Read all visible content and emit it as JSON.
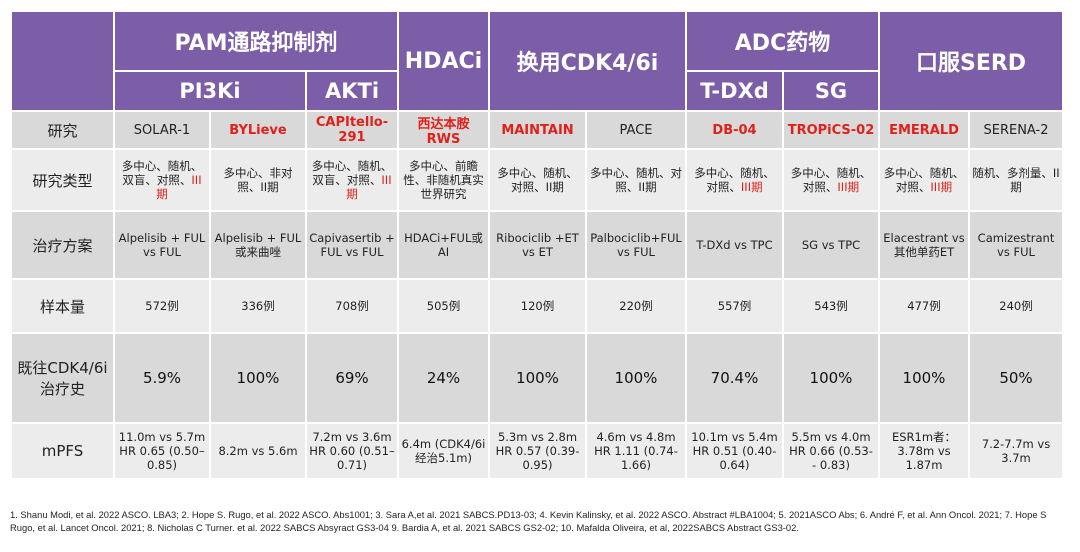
{
  "headers": {
    "pam": "PAM通路抑制剂",
    "pi3ki": "PI3Ki",
    "akti": "AKTi",
    "hdaci": "HDACi",
    "cdk": "换用CDK4/6i",
    "adc": "ADC药物",
    "tdxd": "T-DXd",
    "sg": "SG",
    "serd": "口服SERD"
  },
  "row_labels": {
    "study": "研究",
    "type": "研究类型",
    "plan": "治疗方案",
    "n": "样本量",
    "prior": "既往CDK4/6i治疗史",
    "pfs": "mPFS"
  },
  "studies": [
    {
      "name": "SOLAR-1",
      "highlight": false,
      "type_main": "多中心、随机、双盲、对照、",
      "type_phase": "III期",
      "plan": "Alpelisib + FUL vs FUL",
      "n": "572例",
      "prior": "5.9%",
      "pfs": "11.0m vs 5.7m HR 0.65 (0.50–0.85)"
    },
    {
      "name": "BYLieve",
      "highlight": true,
      "type_main": "多中心、非对照、II期",
      "type_phase": "",
      "plan": "Alpelisib + FUL或来曲唑",
      "n": "336例",
      "prior": "100%",
      "pfs": "8.2m vs 5.6m"
    },
    {
      "name": "CAPItello-291",
      "highlight": true,
      "type_main": "多中心、随机、双盲、对照、",
      "type_phase": "III期",
      "plan": "Capivasertib + FUL vs FUL",
      "n": "708例",
      "prior": "69%",
      "pfs": "7.2m vs 3.6m HR 0.60 (0.51–0.71)"
    },
    {
      "name": "西达本胺RWS",
      "highlight": true,
      "type_main": "多中心、前瞻性、非随机真实世界研究",
      "type_phase": "",
      "plan": "HDACi+FUL或AI",
      "n": "505例",
      "prior": "24%",
      "pfs": "6.4m (CDK4/6i经治5.1m)"
    },
    {
      "name": "MAINTAIN",
      "highlight": true,
      "type_main": "多中心、随机、对照、II期",
      "type_phase": "",
      "plan": "Ribociclib +ET vs ET",
      "n": "120例",
      "prior": "100%",
      "pfs": "5.3m vs 2.8m HR 0.57 (0.39-0.95)"
    },
    {
      "name": "PACE",
      "highlight": false,
      "type_main": "多中心、随机、对照、II期",
      "type_phase": "",
      "plan": "Palbociclib+FUL vs FUL",
      "n": "220例",
      "prior": "100%",
      "pfs": "4.6m vs 4.8m HR 1.11 (0.74-1.66)"
    },
    {
      "name": "DB-04",
      "highlight": true,
      "type_main": "多中心、随机、对照、",
      "type_phase": "III期",
      "plan": "T-DXd vs TPC",
      "n": "557例",
      "prior": "70.4%",
      "pfs": "10.1m vs 5.4m HR 0.51 (0.40-0.64)"
    },
    {
      "name": "TROPiCS-02",
      "highlight": true,
      "type_main": "多中心、随机、对照、",
      "type_phase": "III期",
      "plan": "SG vs TPC",
      "n": "543例",
      "prior": "100%",
      "pfs": "5.5m vs 4.0m HR 0.66 (0.53- - 0.83)"
    },
    {
      "name": "EMERALD",
      "highlight": true,
      "type_main": "多中心、随机、对照、",
      "type_phase": "III期",
      "plan": "Elacestrant vs 其他单药ET",
      "n": "477例",
      "prior": "100%",
      "pfs": "ESR1m者：3.78m vs 1.87m"
    },
    {
      "name": "SERENA-2",
      "highlight": false,
      "type_main": "随机、多剂量、II期",
      "type_phase": "",
      "plan": "Camizestrant vs FUL",
      "n": "240例",
      "prior": "50%",
      "pfs": "7.2-7.7m vs 3.7m"
    }
  ],
  "footnote": "1. Shanu Modi, et al. 2022 ASCO. LBA3; 2. Hope S. Rugo, et al. 2022 ASCO. Abs1001; 3. Sara A,et al. 2021 SABCS.PD13-03; 4. Kevin Kalinsky, et al. 2022 ASCO. Abstract #LBA1004; 5. 2021ASCO Abs; 6. André F, et al. Ann Oncol. 2021; 7. Hope S Rugo, et al. Lancet Oncol. 2021; 8. Nicholas C Turner. et al. 2022 SABCS Absyract GS3-04 9. Bardia A, et al. 2021 SABCS GS2-02; 10. Mafalda Oliveira, et al, 2022SABCS Abstract GS3-02.",
  "colors": {
    "header": "#7b5ea7",
    "highlight": "#e0201a",
    "row_dark": "#d9d9d9",
    "row_light": "#ececec"
  }
}
